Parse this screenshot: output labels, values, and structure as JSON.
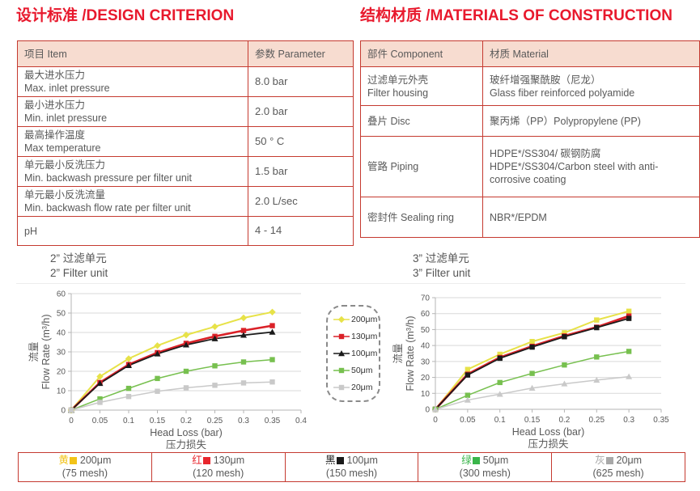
{
  "titles": {
    "design": "设计标准 /DESIGN CRITERION",
    "materials": "结构材质 /MATERIALS OF CONSTRUCTION"
  },
  "design_table": {
    "headers": [
      "项目 Item",
      "参数 Parameter"
    ],
    "rows": [
      {
        "item_lines": [
          "最大进水压力",
          "Max. inlet pressure"
        ],
        "value": "8.0 bar"
      },
      {
        "item_lines": [
          "最小进水压力",
          "Min. inlet pressure"
        ],
        "value": "2.0 bar"
      },
      {
        "item_lines": [
          "最高操作温度",
          "Max temperature"
        ],
        "value": "50 ° C"
      },
      {
        "item_lines": [
          "单元最小反洗压力",
          "Min. backwash pressure per filter unit"
        ],
        "value": "1.5 bar"
      },
      {
        "item_lines": [
          "单元最小反洗流量",
          "Min. backwash flow rate per filter unit"
        ],
        "value": "2.0 L/sec"
      },
      {
        "item_lines": [
          "pH"
        ],
        "value": "4 - 14"
      }
    ]
  },
  "materials_table": {
    "headers": [
      "部件 Component",
      "材质 Material"
    ],
    "rows": [
      {
        "component_lines": [
          "过滤单元外壳",
          "Filter housing"
        ],
        "material_lines": [
          "玻纤增强聚酰胺（尼龙）",
          "Glass fiber reinforced polyamide"
        ]
      },
      {
        "component_lines": [
          "叠片 Disc"
        ],
        "material_lines": [
          "聚丙烯（PP）Polypropylene (PP)"
        ]
      },
      {
        "component_lines": [
          "管路 Piping"
        ],
        "material_lines": [
          "HDPE*/SS304/ 碳钢防腐",
          "HDPE*/SS304/Carbon steel with anti-corrosive coating"
        ]
      },
      {
        "component_lines": [
          "密封件 Sealing ring"
        ],
        "material_lines": [
          "NBR*/EPDM"
        ]
      }
    ]
  },
  "chart_data": [
    {
      "type": "line",
      "title_zh": "2” 过滤单元",
      "title_en": "2” Filter unit",
      "xlabel": "Head Loss (bar)",
      "xlabel_zh": "压力损失",
      "ylabel_zh": "流量",
      "ylabel": "Flow Rate (m³/h)",
      "xlim": [
        0,
        0.4
      ],
      "ylim": [
        0,
        60
      ],
      "xticks": [
        0,
        0.05,
        0.1,
        0.15,
        0.2,
        0.25,
        0.3,
        0.35,
        0.4
      ],
      "yticks": [
        0,
        10,
        20,
        30,
        40,
        50,
        60
      ],
      "grid": true,
      "x": [
        0,
        0.05,
        0.1,
        0.15,
        0.2,
        0.25,
        0.3,
        0.35
      ],
      "series": [
        {
          "name": "200μm",
          "color": "#e7e248",
          "marker": "diamond",
          "stroke_width": 2,
          "values": [
            0,
            17.3,
            26.5,
            33.2,
            38.7,
            43.0,
            47.5,
            50.5
          ]
        },
        {
          "name": "130μm",
          "color": "#da2128",
          "marker": "square",
          "stroke_width": 2.6,
          "values": [
            0,
            14.2,
            23.5,
            29.6,
            34.4,
            38.0,
            41.0,
            43.5
          ]
        },
        {
          "name": "100μm",
          "color": "#1a1a1a",
          "marker": "triangle",
          "stroke_width": 1.7,
          "values": [
            0,
            13.8,
            23.0,
            29.0,
            33.6,
            36.8,
            38.6,
            40.2
          ]
        },
        {
          "name": "50μm",
          "color": "#77c04f",
          "marker": "square",
          "stroke_width": 1.5,
          "values": [
            0,
            5.8,
            11.2,
            16.3,
            20.0,
            22.8,
            24.8,
            26.0
          ]
        },
        {
          "name": "20μm",
          "color": "#c9c9c9",
          "marker": "square",
          "stroke_width": 1.5,
          "values": [
            0,
            4.0,
            7.0,
            9.7,
            11.5,
            12.8,
            14.0,
            14.5
          ]
        }
      ]
    },
    {
      "type": "line",
      "title_zh": "3” 过滤单元",
      "title_en": "3” Filter unit",
      "xlabel": "Head Loss (bar)",
      "xlabel_zh": "压力损失",
      "ylabel_zh": "流量",
      "ylabel": "Flow Rate (m³/h)",
      "xlim": [
        0,
        0.35
      ],
      "ylim": [
        0,
        70
      ],
      "xticks": [
        0,
        0.05,
        0.1,
        0.15,
        0.2,
        0.25,
        0.3,
        0.35
      ],
      "yticks": [
        0,
        10,
        20,
        30,
        40,
        50,
        60,
        70
      ],
      "grid": true,
      "x": [
        0,
        0.05,
        0.1,
        0.15,
        0.2,
        0.25,
        0.3
      ],
      "series": [
        {
          "name": "200μm",
          "color": "#e7e248",
          "marker": "square",
          "stroke_width": 2,
          "values": [
            0,
            25.0,
            34.5,
            42.5,
            48.0,
            56.0,
            61.5
          ]
        },
        {
          "name": "130μm",
          "color": "#da2128",
          "marker": "square",
          "stroke_width": 2.8,
          "values": [
            0,
            22.0,
            32.5,
            39.5,
            46.0,
            51.5,
            58.5
          ]
        },
        {
          "name": "100μm",
          "color": "#1a1a1a",
          "marker": "square",
          "stroke_width": 1.7,
          "values": [
            0,
            21.5,
            32.0,
            39.0,
            45.5,
            51.2,
            57.0
          ]
        },
        {
          "name": "50μm",
          "color": "#77c04f",
          "marker": "square",
          "stroke_width": 1.5,
          "values": [
            0,
            8.8,
            16.8,
            22.5,
            27.8,
            32.8,
            36.3
          ]
        },
        {
          "name": "20μm",
          "color": "#c9c9c9",
          "marker": "triangle",
          "stroke_width": 1.5,
          "values": [
            0,
            5.8,
            9.5,
            13.3,
            16.0,
            18.3,
            20.5
          ]
        }
      ]
    }
  ],
  "center_legend": {
    "items": [
      {
        "label": "200μm",
        "color": "#e7e248",
        "marker": "diamond"
      },
      {
        "label": "130μm",
        "color": "#da2128",
        "marker": "square"
      },
      {
        "label": "100μm",
        "color": "#1a1a1a",
        "marker": "triangle"
      },
      {
        "label": "50μm",
        "color": "#77c04f",
        "marker": "square"
      },
      {
        "label": "20μm",
        "color": "#c9c9c9",
        "marker": "square"
      }
    ]
  },
  "bottom_legend": {
    "cells": [
      {
        "color_zh": "黄",
        "color": "#f2c318",
        "label": "200μm",
        "mesh": "(75 mesh)"
      },
      {
        "color_zh": "红",
        "color": "#e8262d",
        "label": "130μm",
        "mesh": "(120 mesh)"
      },
      {
        "color_zh": "黑",
        "color": "#1a1a1a",
        "label": "100μm",
        "mesh": "(150 mesh)"
      },
      {
        "color_zh": "绿",
        "color": "#3ab54a",
        "label": "50μm",
        "mesh": "(300 mesh)"
      },
      {
        "color_zh": "灰",
        "color": "#a8a8a8",
        "label": "20μm",
        "mesh": "(625 mesh)"
      }
    ]
  }
}
